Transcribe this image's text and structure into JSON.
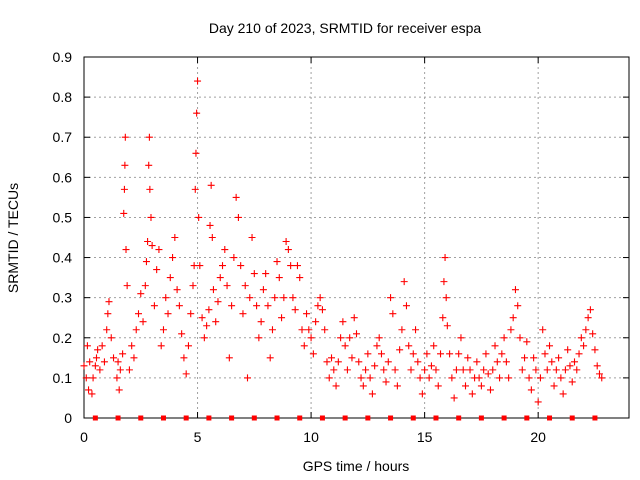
{
  "chart_data": {
    "type": "scatter",
    "title": "Day 210 of 2023, SRMTID for receiver espa",
    "xlabel": "GPS time / hours",
    "ylabel": "SRMTID / TECUs",
    "xlim": [
      0,
      24
    ],
    "ylim": [
      0,
      0.9
    ],
    "xticks": [
      0,
      5,
      10,
      15,
      20
    ],
    "yticks": [
      0,
      0.1,
      0.2,
      0.3,
      0.4,
      0.5,
      0.6,
      0.7,
      0.8,
      0.9
    ],
    "grid": true,
    "marker": "+",
    "color": "#ff0000",
    "baseline_marker_times": [
      0.5,
      1.5,
      2.5,
      3.5,
      4.5,
      5.5,
      6.5,
      7.5,
      8.5,
      9.5,
      10.5,
      11.5,
      12.5,
      13.5,
      14.5,
      15.5,
      16.5,
      17.5,
      18.5,
      19.5,
      20.5,
      21.5,
      22.5
    ],
    "series": [
      {
        "name": "SRMTID",
        "points": [
          [
            0.0,
            0.13
          ],
          [
            0.1,
            0.1
          ],
          [
            0.15,
            0.18
          ],
          [
            0.2,
            0.07
          ],
          [
            0.25,
            0.14
          ],
          [
            0.35,
            0.06
          ],
          [
            0.4,
            0.1
          ],
          [
            0.5,
            0.13
          ],
          [
            0.55,
            0.15
          ],
          [
            0.6,
            0.17
          ],
          [
            0.7,
            0.12
          ],
          [
            0.8,
            0.18
          ],
          [
            0.9,
            0.14
          ],
          [
            1.0,
            0.22
          ],
          [
            1.05,
            0.26
          ],
          [
            1.1,
            0.29
          ],
          [
            1.2,
            0.2
          ],
          [
            1.3,
            0.15
          ],
          [
            1.45,
            0.1
          ],
          [
            1.5,
            0.14
          ],
          [
            1.55,
            0.07
          ],
          [
            1.6,
            0.12
          ],
          [
            1.7,
            0.16
          ],
          [
            1.75,
            0.51
          ],
          [
            1.78,
            0.57
          ],
          [
            1.8,
            0.63
          ],
          [
            1.82,
            0.7
          ],
          [
            1.85,
            0.42
          ],
          [
            1.9,
            0.33
          ],
          [
            2.0,
            0.12
          ],
          [
            2.1,
            0.18
          ],
          [
            2.2,
            0.15
          ],
          [
            2.3,
            0.22
          ],
          [
            2.4,
            0.26
          ],
          [
            2.5,
            0.31
          ],
          [
            2.6,
            0.24
          ],
          [
            2.7,
            0.33
          ],
          [
            2.75,
            0.39
          ],
          [
            2.8,
            0.44
          ],
          [
            2.85,
            0.63
          ],
          [
            2.88,
            0.7
          ],
          [
            2.9,
            0.57
          ],
          [
            2.95,
            0.5
          ],
          [
            3.0,
            0.43
          ],
          [
            3.1,
            0.28
          ],
          [
            3.2,
            0.37
          ],
          [
            3.3,
            0.42
          ],
          [
            3.4,
            0.18
          ],
          [
            3.5,
            0.22
          ],
          [
            3.6,
            0.3
          ],
          [
            3.7,
            0.26
          ],
          [
            3.8,
            0.35
          ],
          [
            3.9,
            0.4
          ],
          [
            4.0,
            0.45
          ],
          [
            4.1,
            0.32
          ],
          [
            4.2,
            0.28
          ],
          [
            4.3,
            0.21
          ],
          [
            4.4,
            0.15
          ],
          [
            4.5,
            0.11
          ],
          [
            4.6,
            0.18
          ],
          [
            4.7,
            0.26
          ],
          [
            4.8,
            0.33
          ],
          [
            4.85,
            0.38
          ],
          [
            4.9,
            0.57
          ],
          [
            4.93,
            0.66
          ],
          [
            4.96,
            0.76
          ],
          [
            5.0,
            0.84
          ],
          [
            5.05,
            0.5
          ],
          [
            5.1,
            0.38
          ],
          [
            5.2,
            0.25
          ],
          [
            5.3,
            0.2
          ],
          [
            5.4,
            0.23
          ],
          [
            5.5,
            0.27
          ],
          [
            5.55,
            0.48
          ],
          [
            5.6,
            0.58
          ],
          [
            5.65,
            0.45
          ],
          [
            5.7,
            0.32
          ],
          [
            5.8,
            0.24
          ],
          [
            5.9,
            0.29
          ],
          [
            6.0,
            0.35
          ],
          [
            6.1,
            0.38
          ],
          [
            6.2,
            0.42
          ],
          [
            6.3,
            0.33
          ],
          [
            6.4,
            0.15
          ],
          [
            6.5,
            0.28
          ],
          [
            6.6,
            0.4
          ],
          [
            6.7,
            0.55
          ],
          [
            6.8,
            0.5
          ],
          [
            6.9,
            0.38
          ],
          [
            7.0,
            0.26
          ],
          [
            7.1,
            0.33
          ],
          [
            7.2,
            0.1
          ],
          [
            7.3,
            0.3
          ],
          [
            7.4,
            0.45
          ],
          [
            7.5,
            0.36
          ],
          [
            7.6,
            0.28
          ],
          [
            7.7,
            0.2
          ],
          [
            7.8,
            0.24
          ],
          [
            7.9,
            0.32
          ],
          [
            8.0,
            0.36
          ],
          [
            8.1,
            0.28
          ],
          [
            8.2,
            0.15
          ],
          [
            8.3,
            0.22
          ],
          [
            8.4,
            0.3
          ],
          [
            8.5,
            0.39
          ],
          [
            8.6,
            0.35
          ],
          [
            8.7,
            0.25
          ],
          [
            8.8,
            0.3
          ],
          [
            8.9,
            0.44
          ],
          [
            9.0,
            0.42
          ],
          [
            9.1,
            0.38
          ],
          [
            9.2,
            0.3
          ],
          [
            9.3,
            0.27
          ],
          [
            9.4,
            0.38
          ],
          [
            9.5,
            0.35
          ],
          [
            9.6,
            0.22
          ],
          [
            9.7,
            0.18
          ],
          [
            9.8,
            0.26
          ],
          [
            9.9,
            0.22
          ],
          [
            10.0,
            0.2
          ],
          [
            10.1,
            0.16
          ],
          [
            10.2,
            0.24
          ],
          [
            10.3,
            0.28
          ],
          [
            10.4,
            0.3
          ],
          [
            10.5,
            0.27
          ],
          [
            10.6,
            0.22
          ],
          [
            10.7,
            0.14
          ],
          [
            10.8,
            0.1
          ],
          [
            10.9,
            0.15
          ],
          [
            11.0,
            0.12
          ],
          [
            11.1,
            0.08
          ],
          [
            11.2,
            0.14
          ],
          [
            11.3,
            0.2
          ],
          [
            11.4,
            0.24
          ],
          [
            11.5,
            0.18
          ],
          [
            11.6,
            0.12
          ],
          [
            11.7,
            0.2
          ],
          [
            11.8,
            0.15
          ],
          [
            11.9,
            0.25
          ],
          [
            12.0,
            0.21
          ],
          [
            12.1,
            0.14
          ],
          [
            12.2,
            0.1
          ],
          [
            12.3,
            0.08
          ],
          [
            12.4,
            0.12
          ],
          [
            12.5,
            0.16
          ],
          [
            12.6,
            0.1
          ],
          [
            12.7,
            0.06
          ],
          [
            12.8,
            0.13
          ],
          [
            12.9,
            0.18
          ],
          [
            13.0,
            0.2
          ],
          [
            13.1,
            0.16
          ],
          [
            13.2,
            0.12
          ],
          [
            13.3,
            0.09
          ],
          [
            13.4,
            0.14
          ],
          [
            13.5,
            0.3
          ],
          [
            13.6,
            0.26
          ],
          [
            13.7,
            0.12
          ],
          [
            13.8,
            0.08
          ],
          [
            13.9,
            0.17
          ],
          [
            14.0,
            0.22
          ],
          [
            14.1,
            0.34
          ],
          [
            14.2,
            0.28
          ],
          [
            14.3,
            0.18
          ],
          [
            14.4,
            0.12
          ],
          [
            14.5,
            0.16
          ],
          [
            14.6,
            0.22
          ],
          [
            14.7,
            0.14
          ],
          [
            14.8,
            0.1
          ],
          [
            14.9,
            0.06
          ],
          [
            15.0,
            0.12
          ],
          [
            15.1,
            0.16
          ],
          [
            15.2,
            0.1
          ],
          [
            15.3,
            0.13
          ],
          [
            15.4,
            0.18
          ],
          [
            15.5,
            0.12
          ],
          [
            15.6,
            0.08
          ],
          [
            15.7,
            0.16
          ],
          [
            15.8,
            0.25
          ],
          [
            15.85,
            0.34
          ],
          [
            15.9,
            0.4
          ],
          [
            15.95,
            0.3
          ],
          [
            16.0,
            0.23
          ],
          [
            16.1,
            0.16
          ],
          [
            16.2,
            0.1
          ],
          [
            16.3,
            0.05
          ],
          [
            16.4,
            0.12
          ],
          [
            16.5,
            0.16
          ],
          [
            16.6,
            0.2
          ],
          [
            16.7,
            0.12
          ],
          [
            16.8,
            0.08
          ],
          [
            16.9,
            0.15
          ],
          [
            17.0,
            0.12
          ],
          [
            17.1,
            0.06
          ],
          [
            17.2,
            0.1
          ],
          [
            17.3,
            0.14
          ],
          [
            17.4,
            0.1
          ],
          [
            17.5,
            0.08
          ],
          [
            17.6,
            0.12
          ],
          [
            17.7,
            0.16
          ],
          [
            17.8,
            0.11
          ],
          [
            17.9,
            0.07
          ],
          [
            18.0,
            0.12
          ],
          [
            18.1,
            0.18
          ],
          [
            18.2,
            0.14
          ],
          [
            18.3,
            0.1
          ],
          [
            18.4,
            0.16
          ],
          [
            18.5,
            0.2
          ],
          [
            18.6,
            0.14
          ],
          [
            18.7,
            0.1
          ],
          [
            18.8,
            0.22
          ],
          [
            18.9,
            0.25
          ],
          [
            19.0,
            0.32
          ],
          [
            19.1,
            0.28
          ],
          [
            19.2,
            0.2
          ],
          [
            19.3,
            0.12
          ],
          [
            19.4,
            0.15
          ],
          [
            19.5,
            0.19
          ],
          [
            19.6,
            0.1
          ],
          [
            19.7,
            0.07
          ],
          [
            19.8,
            0.15
          ],
          [
            19.9,
            0.12
          ],
          [
            20.0,
            0.04
          ],
          [
            20.1,
            0.1
          ],
          [
            20.2,
            0.22
          ],
          [
            20.3,
            0.16
          ],
          [
            20.4,
            0.12
          ],
          [
            20.5,
            0.18
          ],
          [
            20.6,
            0.14
          ],
          [
            20.7,
            0.08
          ],
          [
            20.8,
            0.12
          ],
          [
            20.9,
            0.15
          ],
          [
            21.0,
            0.1
          ],
          [
            21.1,
            0.06
          ],
          [
            21.2,
            0.12
          ],
          [
            21.3,
            0.17
          ],
          [
            21.4,
            0.13
          ],
          [
            21.5,
            0.09
          ],
          [
            21.6,
            0.14
          ],
          [
            21.7,
            0.12
          ],
          [
            21.8,
            0.16
          ],
          [
            21.9,
            0.2
          ],
          [
            22.0,
            0.18
          ],
          [
            22.1,
            0.22
          ],
          [
            22.2,
            0.25
          ],
          [
            22.3,
            0.27
          ],
          [
            22.4,
            0.21
          ],
          [
            22.5,
            0.17
          ],
          [
            22.6,
            0.13
          ],
          [
            22.7,
            0.11
          ],
          [
            22.8,
            0.1
          ]
        ]
      }
    ]
  }
}
